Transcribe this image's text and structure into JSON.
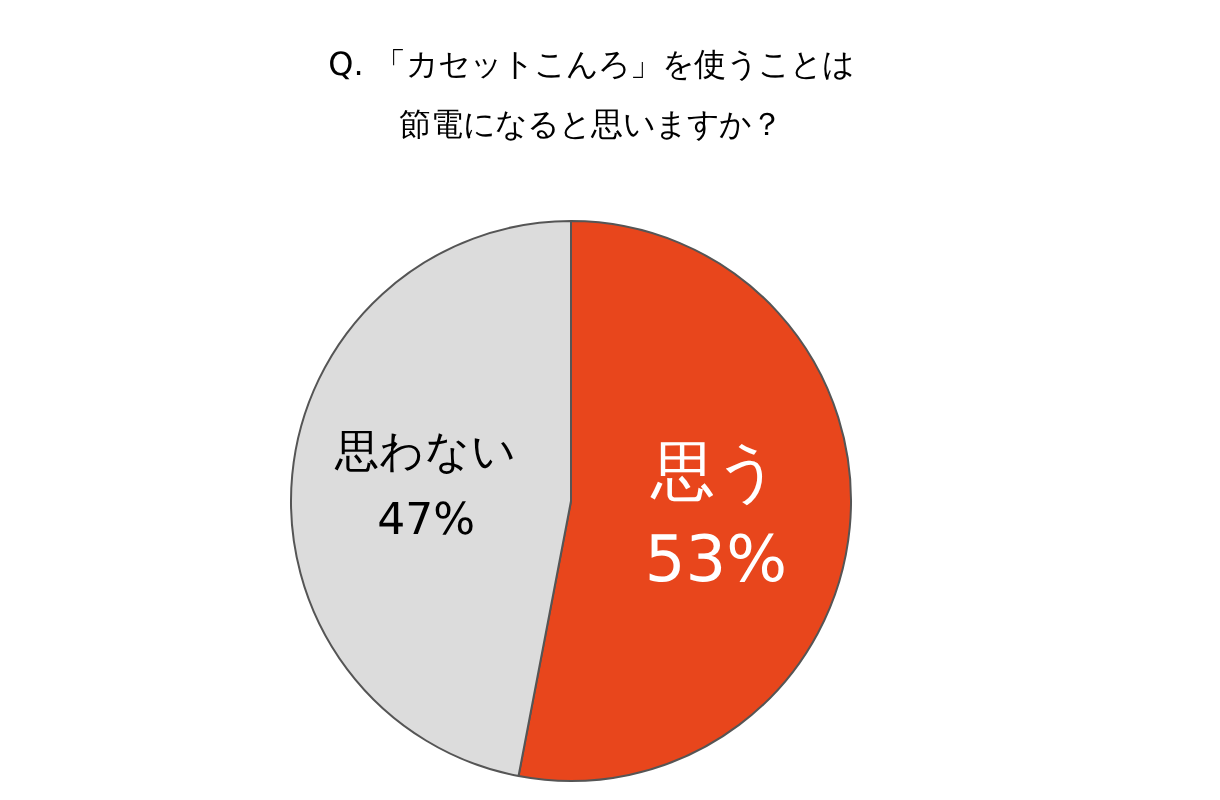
{
  "chart_data": {
    "type": "pie",
    "title": "Q. 「カセットこんろ」を使うことは",
    "subtitle": "節電になると思いますか？",
    "categories": [
      "思う",
      "思わない"
    ],
    "values": [
      53,
      47
    ],
    "colors": [
      "#e8461c",
      "#dcdcdc"
    ],
    "value_labels": [
      "53%",
      "47%"
    ]
  }
}
